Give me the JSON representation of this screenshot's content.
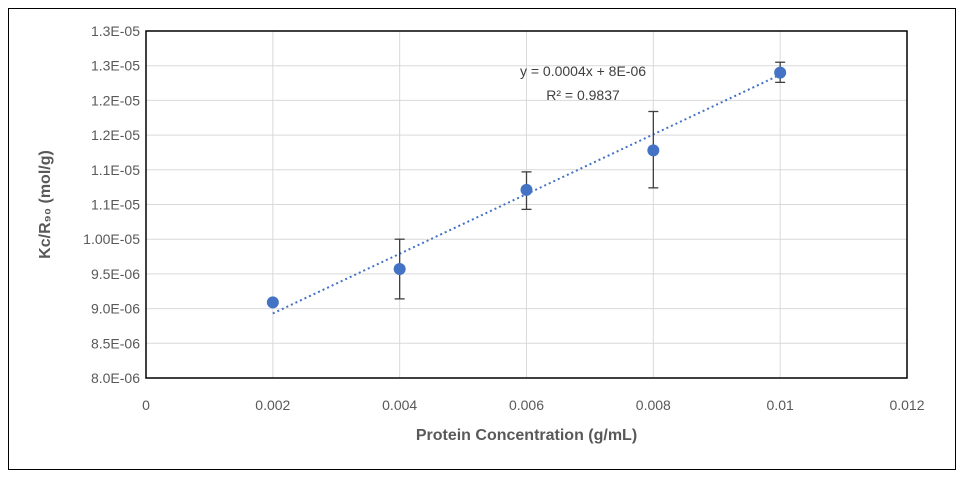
{
  "chart_data": {
    "type": "scatter",
    "xlabel": "Protein Concentration (g/mL)",
    "ylabel": "Kc/R₉₀  (mol/g)",
    "xlim": [
      0,
      0.012
    ],
    "ylim": [
      8e-06,
      1.3e-05
    ],
    "x_ticks": [
      "0",
      "0.002",
      "0.004",
      "0.006",
      "0.008",
      "0.01",
      "0.012"
    ],
    "x_tick_values": [
      0,
      0.002,
      0.004,
      0.006,
      0.008,
      0.01,
      0.012
    ],
    "y_ticks": [
      "8.0E-06",
      "8.5E-06",
      "9.0E-06",
      "9.5E-06",
      "1.00E-05",
      "1.1E-05",
      "1.1E-05",
      "1.2E-05",
      "1.2E-05",
      "1.3E-05",
      "1.3E-05"
    ],
    "y_tick_values": [
      8e-06,
      8.5e-06,
      9e-06,
      9.5e-06,
      1e-05,
      1.05e-05,
      1.1e-05,
      1.15e-05,
      1.2e-05,
      1.25e-05,
      1.3e-05
    ],
    "grid": true,
    "series": [
      {
        "x": [
          0.002,
          0.004,
          0.006,
          0.008,
          0.01
        ],
        "y": [
          9.09e-06,
          9.57e-06,
          1.071e-05,
          1.128e-05,
          1.24e-05
        ],
        "error_low": [
          9.09e-06,
          9.14e-06,
          1.043e-05,
          1.074e-05,
          1.226e-05
        ],
        "error_high": [
          9.09e-06,
          1e-05,
          1.097e-05,
          1.184e-05,
          1.255e-05
        ],
        "color": "#4472C4"
      }
    ],
    "trendline": {
      "color": "#4472C4",
      "x": [
        0.002,
        0.01
      ],
      "y": [
        8.93e-06,
        1.237e-05
      ],
      "equation": "y = 0.0004x + 8E-06",
      "r_squared": "R² = 0.9837"
    }
  }
}
